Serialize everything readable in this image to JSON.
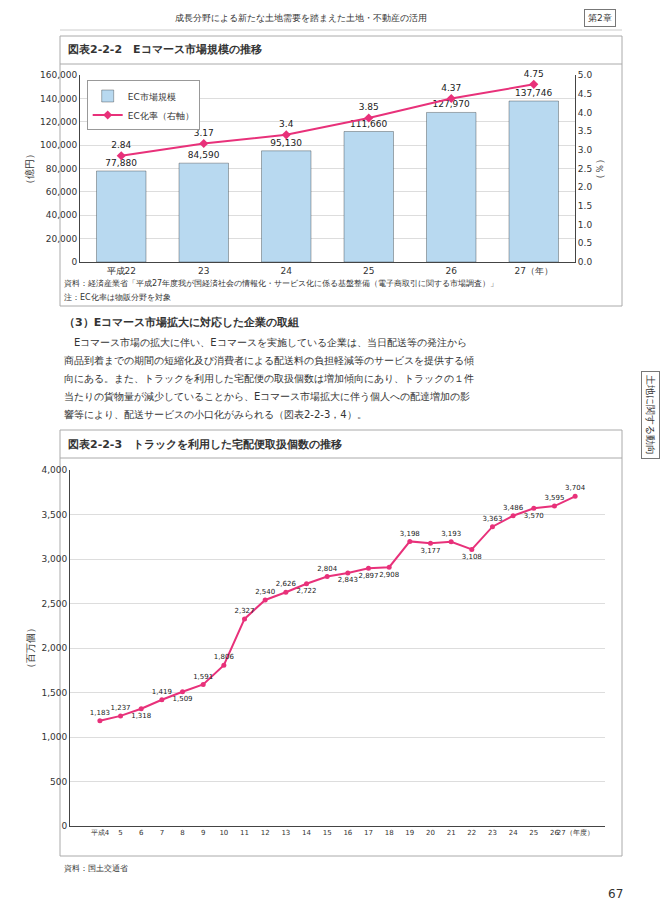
{
  "chart_data": [
    {
      "type": "bar",
      "title": "図表2-2-2　Eコマース市場規模の推移",
      "categories": [
        "平成22",
        "23",
        "24",
        "25",
        "26",
        "27（年）"
      ],
      "series": [
        {
          "name": "EC市場規模",
          "type": "bar",
          "color": "#b8d9f0",
          "values": [
            77880,
            84590,
            95130,
            111660,
            127970,
            137746
          ],
          "value_labels": [
            "77,880",
            "84,590",
            "95,130",
            "111,660",
            "127,970",
            "137,746"
          ]
        },
        {
          "name": "EC化率（右軸）",
          "type": "line",
          "color": "#e8317a",
          "marker": "diamond",
          "axis": "y2",
          "values": [
            2.84,
            3.17,
            3.4,
            3.85,
            4.37,
            4.75
          ]
        }
      ],
      "ylabel": "（億円）",
      "y2label": "（％）",
      "ylim": [
        0,
        160000
      ],
      "yticks": [
        0,
        {
          "value": 20000,
          "label": "20,000"
        },
        {
          "value": 40000,
          "label": "40,000"
        },
        {
          "value": 60000,
          "label": "60,000"
        },
        {
          "value": 80000,
          "label": "80,000"
        },
        {
          "value": 100000,
          "label": "100,000"
        },
        {
          "value": 120000,
          "label": "120,000"
        },
        {
          "value": 140000,
          "label": "140,000"
        },
        {
          "value": 160000,
          "label": "160,000"
        }
      ],
      "y2lim": [
        0,
        5
      ],
      "y2ticks": [
        {
          "value": 0,
          "label": "0.0"
        },
        0.5,
        {
          "value": 1,
          "label": "1.0"
        },
        1.5,
        {
          "value": 2,
          "label": "2.0"
        },
        2.5,
        {
          "value": 3,
          "label": "3.0"
        },
        3.5,
        {
          "value": 4,
          "label": "4.0"
        },
        4.5,
        {
          "value": 5,
          "label": "5.0"
        }
      ],
      "grid": true,
      "legend": "upper left",
      "data_labels": true,
      "annotations": [
        "成長分野による新たな土地需要を踏まえた土地・不動産の活用",
        "第2章",
        "土地に関する動向",
        "資料：経済産業省「平成27年度我が国経済社会の情報化・サービス化に係る基盤整備（電子商取引に関する市場調査）」",
        "注：EC化率は物販分野を対象"
      ]
    },
    {
      "type": "line",
      "title": "図表2-2-3　トラックを利用した宅配便取扱個数の推移",
      "categories": [
        "平成4",
        "5",
        "6",
        "7",
        "8",
        "9",
        "10",
        "11",
        "12",
        "13",
        "14",
        "15",
        "16",
        "17",
        "18",
        "19",
        "20",
        "21",
        "22",
        "23",
        "24",
        "25",
        "26",
        "27（年度）"
      ],
      "values": [
        1183,
        1237,
        1318,
        1419,
        1509,
        1591,
        1806,
        2327,
        2540,
        2626,
        2722,
        2804,
        2843,
        2897,
        2908,
        3198,
        3177,
        3193,
        3108,
        3363,
        3486,
        3570,
        3595,
        3704
      ],
      "value_labels": [
        "1,183",
        "1,237",
        "1,318",
        "1,419",
        "1,509",
        "1,591",
        "1,806",
        "2,327",
        "2,540",
        "2,626",
        "2,722",
        "2,804",
        "2,843",
        "2,897",
        "2,908",
        "3,198",
        "3,177",
        "3,193",
        "3,108",
        "3,363",
        "3,486",
        "3,570",
        "3,595",
        "3,704"
      ],
      "color": "#e8317a",
      "marker": "circle",
      "ylabel": "（百万個）",
      "ylim": [
        0,
        4000
      ],
      "yticks": [
        0,
        500,
        {
          "value": 1000,
          "label": "1,000"
        },
        {
          "value": 1500,
          "label": "1,500"
        },
        {
          "value": 2000,
          "label": "2,000"
        },
        {
          "value": 2500,
          "label": "2,500"
        },
        {
          "value": 3000,
          "label": "3,000"
        },
        {
          "value": 3500,
          "label": "3,500"
        },
        {
          "value": 4000,
          "label": "4,000"
        }
      ],
      "grid": true,
      "data_labels": true,
      "annotations": [
        "（3）Eコマース市場拡大に対応した企業の取組",
        "　Eコマース市場の拡大に伴い、Eコマースを実施している企業は、当日配送等の発注から",
        "商品到着までの期間の短縮化及び消費者による配送料の負担軽減等のサービスを提供する傾",
        "向にある。また、トラックを利用した宅配便の取扱個数は増加傾向にあり、トラックの１件",
        "当たりの貨物量が減少していることから、Eコマース市場拡大に伴う個人への配達増加の影",
        "響等により、配送サービスの小口化がみられる（図表2-2-3，4）。",
        "資料：国土交通省",
        "67"
      ]
    }
  ]
}
